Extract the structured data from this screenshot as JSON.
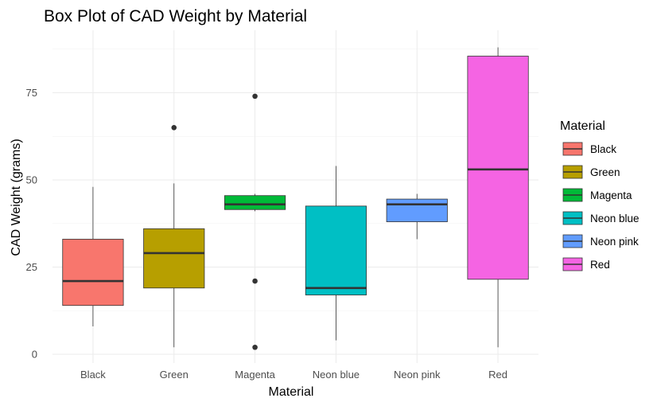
{
  "chart_data": {
    "type": "box",
    "title": "Box Plot of CAD Weight by Material",
    "xlabel": "Material",
    "ylabel": "CAD Weight (grams)",
    "ylim": [
      -2,
      90
    ],
    "yticks": [
      0,
      25,
      50,
      75
    ],
    "grid": true,
    "legend": {
      "title": "Material",
      "placement": "right"
    },
    "categories": [
      "Black",
      "Green",
      "Magenta",
      "Neon blue",
      "Neon pink",
      "Red"
    ],
    "colors": [
      "#F8766D",
      "#B79F00",
      "#00BA38",
      "#00BFC4",
      "#619CFF",
      "#F564E3"
    ],
    "boxes": [
      {
        "category": "Black",
        "whisker_low": 8,
        "q1": 14,
        "median": 21,
        "q3": 33,
        "whisker_high": 48,
        "outliers": []
      },
      {
        "category": "Green",
        "whisker_low": 2,
        "q1": 19,
        "median": 29,
        "q3": 36,
        "whisker_high": 49,
        "outliers": [
          65
        ]
      },
      {
        "category": "Magenta",
        "whisker_low": 41,
        "q1": 41.5,
        "median": 43,
        "q3": 45.5,
        "whisker_high": 46,
        "outliers": [
          74,
          21,
          2
        ]
      },
      {
        "category": "Neon blue",
        "whisker_low": 4,
        "q1": 17,
        "median": 19,
        "q3": 42.5,
        "whisker_high": 54,
        "outliers": []
      },
      {
        "category": "Neon pink",
        "whisker_low": 33,
        "q1": 38,
        "median": 43,
        "q3": 44.5,
        "whisker_high": 46,
        "outliers": []
      },
      {
        "category": "Red",
        "whisker_low": 2,
        "q1": 21.5,
        "median": 53,
        "q3": 85.5,
        "whisker_high": 88,
        "outliers": []
      }
    ]
  }
}
